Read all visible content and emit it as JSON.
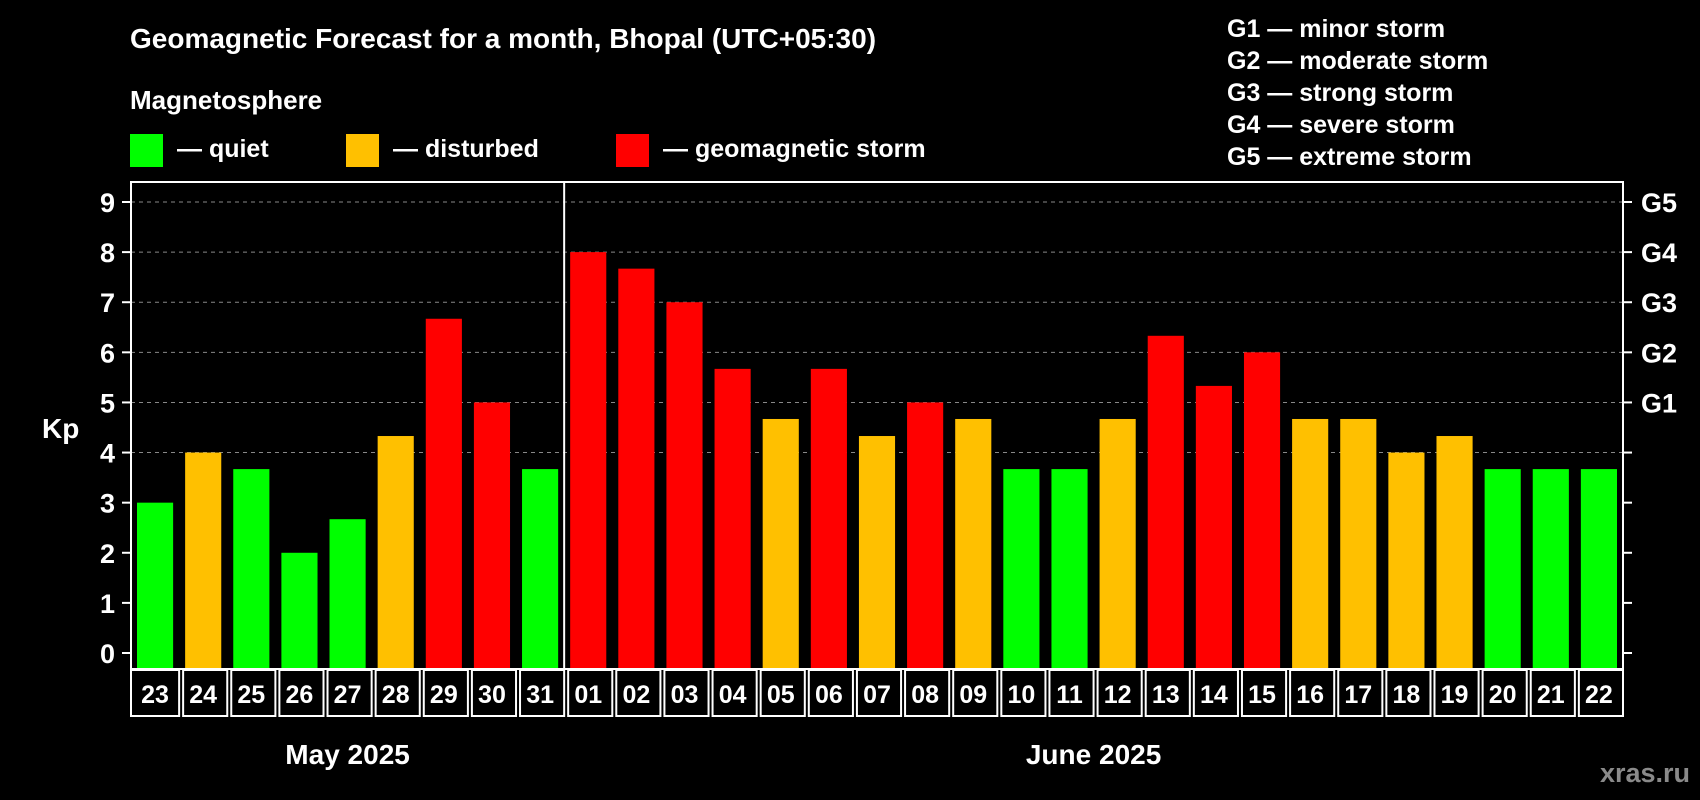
{
  "title": "Geomagnetic Forecast for a month, Bhopal (UTC+05:30)",
  "subtitle": "Magnetosphere",
  "legend": [
    {
      "label": "— quiet",
      "color": "#00ff00"
    },
    {
      "label": "— disturbed",
      "color": "#ffc000"
    },
    {
      "label": "— geomagnetic storm",
      "color": "#ff0000"
    }
  ],
  "storm_levels": [
    "G1 — minor storm",
    "G2 — moderate storm",
    "G3 — strong storm",
    "G4 — severe storm",
    "G5 — extreme storm"
  ],
  "watermark": "xras.ru",
  "colors": {
    "quiet": "#00ff00",
    "disturbed": "#ffc000",
    "storm": "#ff0000",
    "background": "#000000",
    "grid": "#888888"
  },
  "chart_data": {
    "type": "bar",
    "ylabel": "Kp",
    "ylim": [
      0,
      9
    ],
    "yticks": [
      "0",
      "1",
      "2",
      "3",
      "4",
      "5",
      "6",
      "7",
      "8",
      "9"
    ],
    "right_axis_labels": [
      {
        "kp": 5,
        "label": "G1"
      },
      {
        "kp": 6,
        "label": "G2"
      },
      {
        "kp": 7,
        "label": "G3"
      },
      {
        "kp": 8,
        "label": "G4"
      },
      {
        "kp": 9,
        "label": "G5"
      }
    ],
    "categories": [
      "23",
      "24",
      "25",
      "26",
      "27",
      "28",
      "29",
      "30",
      "31",
      "01",
      "02",
      "03",
      "04",
      "05",
      "06",
      "07",
      "08",
      "09",
      "10",
      "11",
      "12",
      "13",
      "14",
      "15",
      "16",
      "17",
      "18",
      "19",
      "20",
      "21",
      "22"
    ],
    "values": [
      3,
      4,
      3.67,
      2,
      2.67,
      4.33,
      6.67,
      5,
      3.67,
      8,
      7.67,
      7,
      5.67,
      4.67,
      5.67,
      4.33,
      5,
      4.67,
      3.67,
      3.67,
      4.67,
      6.33,
      5.33,
      6,
      4.67,
      4.67,
      4,
      4.33,
      3.67,
      3.67,
      3.67
    ],
    "status": [
      "quiet",
      "disturbed",
      "quiet",
      "quiet",
      "quiet",
      "disturbed",
      "storm",
      "storm",
      "quiet",
      "storm",
      "storm",
      "storm",
      "storm",
      "disturbed",
      "storm",
      "disturbed",
      "storm",
      "disturbed",
      "quiet",
      "quiet",
      "disturbed",
      "storm",
      "storm",
      "storm",
      "disturbed",
      "disturbed",
      "disturbed",
      "disturbed",
      "quiet",
      "quiet",
      "quiet"
    ],
    "months": [
      {
        "label": "May 2025",
        "count": 9
      },
      {
        "label": "June 2025",
        "count": 22
      }
    ]
  }
}
